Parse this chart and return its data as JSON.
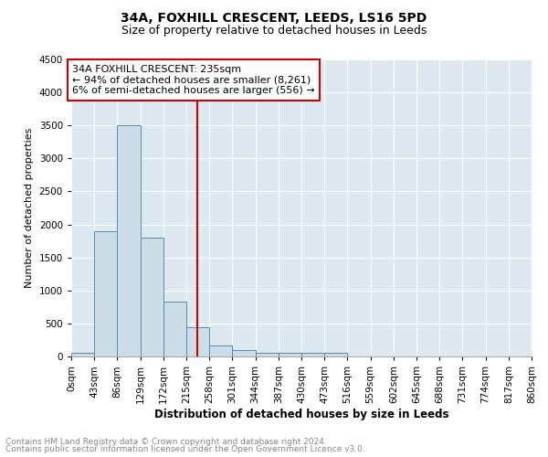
{
  "title1": "34A, FOXHILL CRESCENT, LEEDS, LS16 5PD",
  "title2": "Size of property relative to detached houses in Leeds",
  "xlabel": "Distribution of detached houses by size in Leeds",
  "ylabel": "Number of detached properties",
  "bin_labels": [
    "0sqm",
    "43sqm",
    "86sqm",
    "129sqm",
    "172sqm",
    "215sqm",
    "258sqm",
    "301sqm",
    "344sqm",
    "387sqm",
    "430sqm",
    "473sqm",
    "516sqm",
    "559sqm",
    "602sqm",
    "645sqm",
    "688sqm",
    "731sqm",
    "774sqm",
    "817sqm",
    "860sqm"
  ],
  "bin_edges": [
    0,
    43,
    86,
    129,
    172,
    215,
    258,
    301,
    344,
    387,
    430,
    473,
    516,
    559,
    602,
    645,
    688,
    731,
    774,
    817,
    860
  ],
  "bar_heights": [
    50,
    1900,
    3500,
    1800,
    830,
    450,
    170,
    100,
    60,
    50,
    50,
    50,
    0,
    0,
    0,
    0,
    0,
    0,
    0,
    0
  ],
  "bar_color": "#ccdde8",
  "bar_edgecolor": "#5a8ab0",
  "property_size": 235,
  "vline_color": "#cc0000",
  "annotation_line1": "34A FOXHILL CRESCENT: 235sqm",
  "annotation_line2": "← 94% of detached houses are smaller (8,261)",
  "annotation_line3": "6% of semi-detached houses are larger (556) →",
  "annotation_boxcolor": "white",
  "annotation_edgecolor": "#cc0000",
  "ylim": [
    0,
    4500
  ],
  "yticks": [
    0,
    500,
    1000,
    1500,
    2000,
    2500,
    3000,
    3500,
    4000,
    4500
  ],
  "background_color": "#dde8f0",
  "footnote1": "Contains HM Land Registry data © Crown copyright and database right 2024.",
  "footnote2": "Contains public sector information licensed under the Open Government Licence v3.0.",
  "title1_fontsize": 10,
  "title2_fontsize": 9,
  "xlabel_fontsize": 8.5,
  "ylabel_fontsize": 8,
  "tick_fontsize": 7.5,
  "annotation_fontsize": 8,
  "footnote_fontsize": 6.5
}
